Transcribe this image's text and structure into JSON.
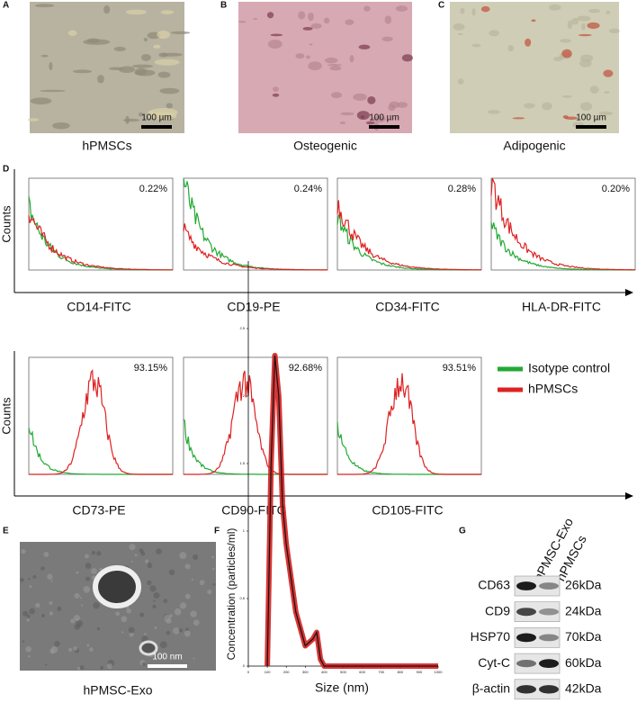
{
  "panel_labels": [
    "A",
    "B",
    "C",
    "D",
    "E",
    "F",
    "G"
  ],
  "micrographs": [
    {
      "scale_bar": "100 µm",
      "caption": "hPMSCs"
    },
    {
      "scale_bar": "100 µm",
      "caption": "Osteogenic"
    },
    {
      "scale_bar": "100 µm",
      "caption": "Adipogenic"
    }
  ],
  "flow": {
    "y_label": "Counts",
    "legend": [
      "Isotype control",
      "hPMSCs"
    ],
    "rows": [
      [
        {
          "marker": "CD14-FITC",
          "percent": "0.22%"
        },
        {
          "marker": "CD19-PE",
          "percent": "0.24%"
        },
        {
          "marker": "CD34-FITC",
          "percent": "0.28%"
        },
        {
          "marker": "HLA-DR-FITC",
          "percent": "0.20%"
        }
      ],
      [
        {
          "marker": "CD73-PE",
          "percent": "93.15%"
        },
        {
          "marker": "CD90-FITC",
          "percent": "92.68%"
        },
        {
          "marker": "CD105-FITC",
          "percent": "93.51%"
        }
      ]
    ]
  },
  "tem": {
    "scale_bar": "100 nm",
    "caption": "hPMSC-Exo"
  },
  "nta": {
    "y_label": "Concentration (particles/ml)",
    "x_label": "Size (nm)",
    "xlim": [
      0,
      1000
    ],
    "xticks": [
      0,
      100,
      200,
      300,
      400,
      500,
      600,
      700,
      800,
      900,
      1000
    ],
    "ylim": [
      0,
      3
    ],
    "yticks": [
      0,
      0.5,
      1,
      1.5,
      2,
      2.5
    ],
    "x": [
      100,
      120,
      140,
      160,
      180,
      200,
      250,
      300,
      340,
      360,
      380,
      400,
      1000
    ],
    "values": [
      0,
      1.5,
      2.3,
      2.0,
      1.2,
      0.9,
      0.4,
      0.15,
      0.2,
      0.25,
      0.05,
      0,
      0
    ]
  },
  "western": {
    "columns": [
      "hPMSC-Exo",
      "hPMSCs"
    ],
    "rows": [
      {
        "protein": "CD63",
        "size": "26kDa"
      },
      {
        "protein": "CD9",
        "size": "24kDa"
      },
      {
        "protein": "HSP70",
        "size": "70kDa"
      },
      {
        "protein": "Cyt-C",
        "size": "60kDa"
      },
      {
        "protein": "β-actin",
        "size": "42kDa"
      }
    ]
  }
}
